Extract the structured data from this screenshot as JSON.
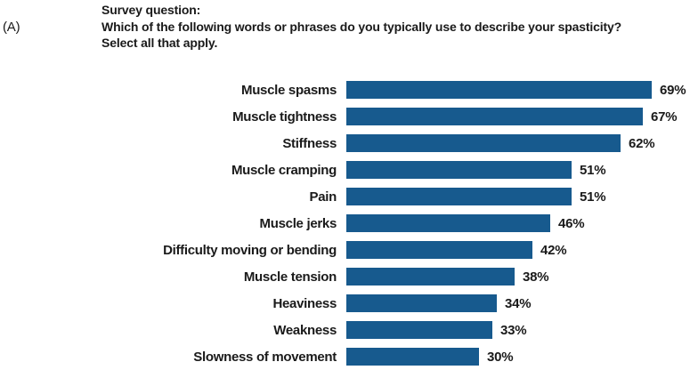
{
  "panel_label": "(A)",
  "header": {
    "line1": "Survey question:",
    "line2": "Which of the following words or phrases do you typically use to describe your spasticity?",
    "line3": "Select all that apply."
  },
  "chart_data": {
    "type": "bar",
    "orientation": "horizontal",
    "title": "Survey question: Which of the following words or phrases do you typically use to describe your spasticity? Select all that apply.",
    "categories": [
      "Muscle spasms",
      "Muscle tightness",
      "Stiffness",
      "Muscle cramping",
      "Pain",
      "Muscle jerks",
      "Difficulty moving or bending",
      "Muscle tension",
      "Heaviness",
      "Weakness",
      "Slowness of movement"
    ],
    "values": [
      69,
      67,
      62,
      51,
      51,
      46,
      42,
      38,
      34,
      33,
      30
    ],
    "value_labels": [
      "69%",
      "67%",
      "62%",
      "51%",
      "51%",
      "46%",
      "42%",
      "38%",
      "34%",
      "33%",
      "30%"
    ],
    "xlim": [
      0,
      100
    ],
    "grid": false,
    "legend": false,
    "bar_color": "#175A8E",
    "text_color": "#1a1a1a"
  }
}
